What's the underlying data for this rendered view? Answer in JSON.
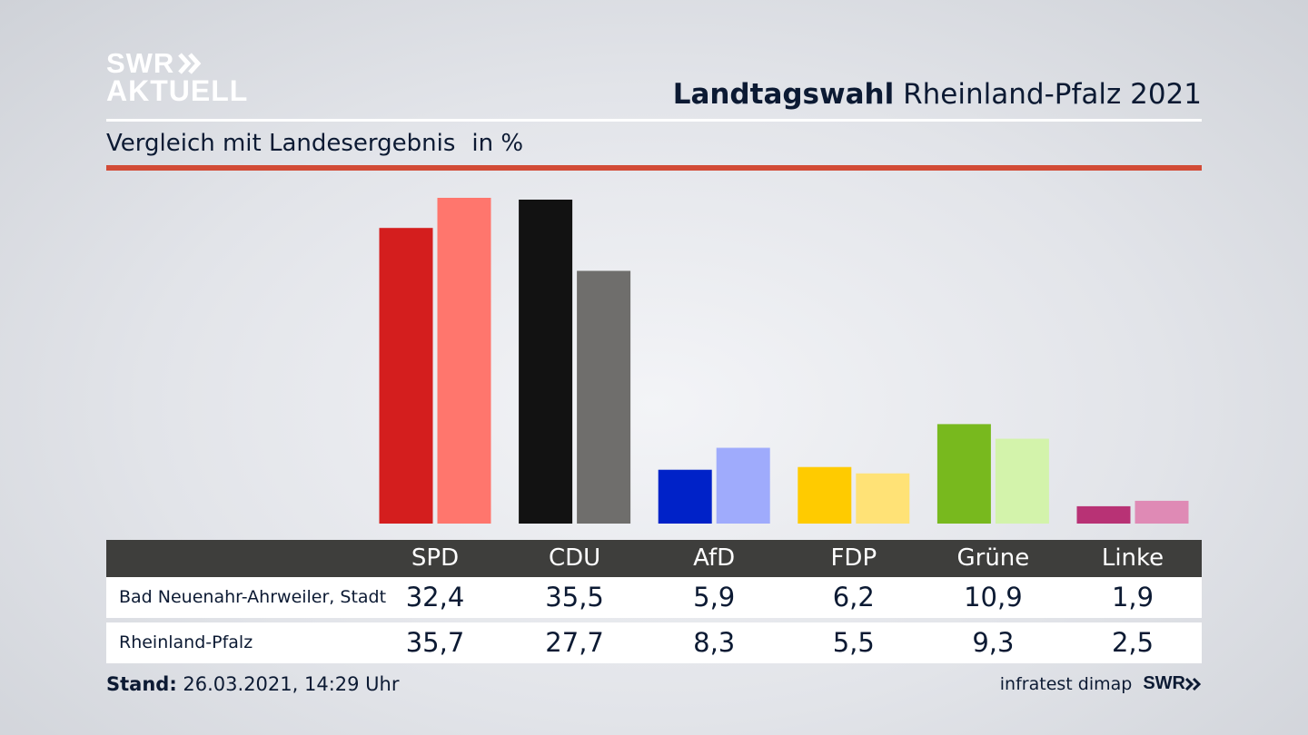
{
  "header": {
    "logo_line1": "SWR",
    "logo_line2": "AKTUELL",
    "title_bold": "Landtagswahl",
    "title_rest": " Rheinland-Pfalz 2021",
    "subtitle": "Vergleich mit Landesergebnis",
    "unit": "in %"
  },
  "chart_data": {
    "type": "bar",
    "categories": [
      "SPD",
      "CDU",
      "AfD",
      "FDP",
      "Grüne",
      "Linke"
    ],
    "series": [
      {
        "name": "Bad Neuenahr-Ahrweiler, Stadt",
        "values": [
          32.4,
          35.5,
          5.9,
          6.2,
          10.9,
          1.9
        ]
      },
      {
        "name": "Rheinland-Pfalz",
        "values": [
          35.7,
          27.7,
          8.3,
          5.5,
          9.3,
          2.5
        ]
      }
    ],
    "colors": {
      "series1": [
        "#d41e1e",
        "#121212",
        "#0022c8",
        "#ffcb00",
        "#78b91e",
        "#b83275"
      ],
      "series2": [
        "#ff766d",
        "#6f6e6c",
        "#9fabfc",
        "#ffe276",
        "#d3f3ab",
        "#df8ab5"
      ]
    },
    "ylim": [
      0,
      36
    ],
    "grid": false
  },
  "table": {
    "row_labels": [
      "Bad Neuenahr-Ahrweiler, Stadt",
      "Rheinland-Pfalz"
    ],
    "row1": [
      "32,4",
      "35,5",
      "5,9",
      "6,2",
      "10,9",
      "1,9"
    ],
    "row2": [
      "35,7",
      "27,7",
      "8,3",
      "5,5",
      "9,3",
      "2,5"
    ]
  },
  "footer": {
    "stand_label": "Stand:",
    "stand_value": " 26.03.2021, 14:29 Uhr",
    "source": "infratest dimap",
    "brand": "SWR"
  }
}
